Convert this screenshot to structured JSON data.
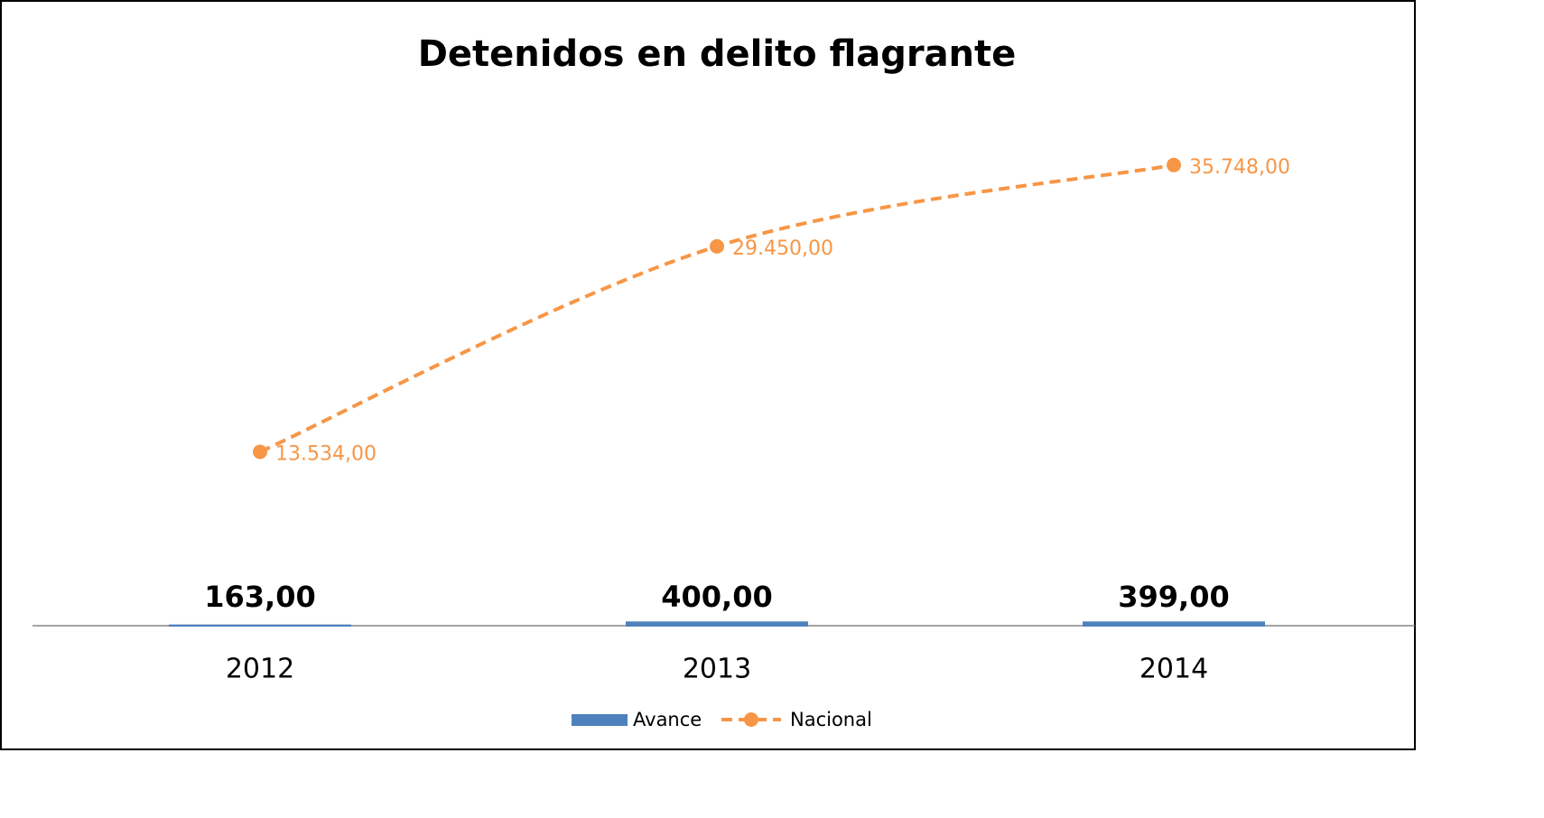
{
  "chart_data": {
    "type": "bar_line",
    "title": "Detenidos en delito flagrante",
    "categories": [
      "2012",
      "2013",
      "2014"
    ],
    "series": [
      {
        "name": "Avance",
        "type": "bar",
        "color": "#4f81bd",
        "values": [
          163,
          400,
          399
        ],
        "value_labels": [
          "163,00",
          "400,00",
          "399,00"
        ]
      },
      {
        "name": "Nacional",
        "type": "line",
        "color": "#f79646",
        "values": [
          13534,
          29450,
          35748
        ],
        "value_labels": [
          "13.534,00",
          "29.450,00",
          "35.748,00"
        ]
      }
    ],
    "ylim": [
      0,
      40000
    ]
  }
}
